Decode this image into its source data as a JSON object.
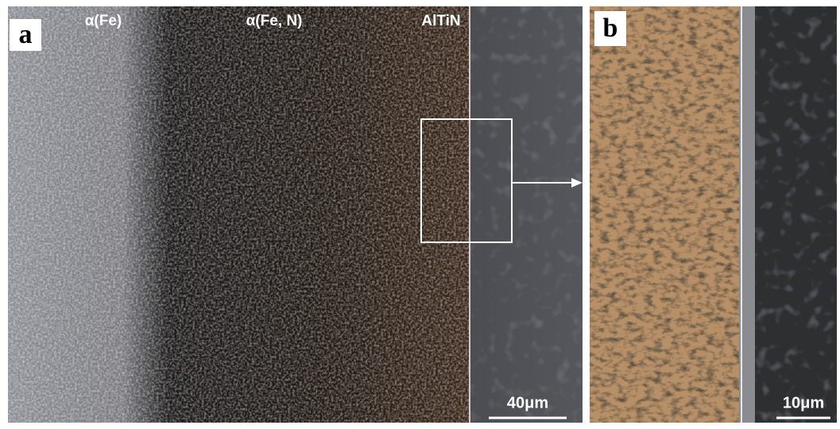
{
  "panels": [
    {
      "label": "a",
      "annotations": [
        "α(Fe)",
        "α(Fe, N)",
        "AlTiN"
      ],
      "scale_bar": "40μm"
    },
    {
      "label": "b",
      "scale_bar": "10μm"
    }
  ]
}
